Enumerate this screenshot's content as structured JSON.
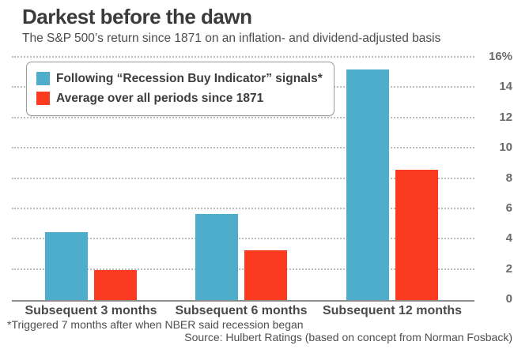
{
  "title": "Darkest before the dawn",
  "subtitle": "The S&P 500’s return since 1871 on an inflation- and dividend-adjusted basis",
  "legend": {
    "items": [
      {
        "label": "Following “Recession Buy Indicator” signals*",
        "color": "#4dadcb"
      },
      {
        "label": "Average over all periods since 1871",
        "color": "#fa3b1f"
      }
    ]
  },
  "footnote": "*Triggered 7 months after when NBER said recession began",
  "source": "Source: Hulbert Ratings (based on concept from Norman Fosback)",
  "chart_data": {
    "type": "bar",
    "categories": [
      "Subsequent 3 months",
      "Subsequent 6 months",
      "Subsequent 12 months"
    ],
    "series": [
      {
        "name": "Following “Recession Buy Indicator” signals*",
        "color": "#4dadcb",
        "values": [
          4.5,
          5.7,
          15.2
        ]
      },
      {
        "name": "Average over all periods since 1871",
        "color": "#fa3b1f",
        "values": [
          2.0,
          3.3,
          8.6
        ]
      }
    ],
    "ylabel": "",
    "xlabel": "",
    "ylim": [
      0,
      16
    ],
    "ytick_step": 2,
    "ytick_labels": [
      "0",
      "2",
      "4",
      "6",
      "8",
      "10",
      "12",
      "14",
      "16%"
    ],
    "grid": "horizontal-dotted",
    "yaxis_side": "right",
    "legend_position": "top-left-inside"
  }
}
